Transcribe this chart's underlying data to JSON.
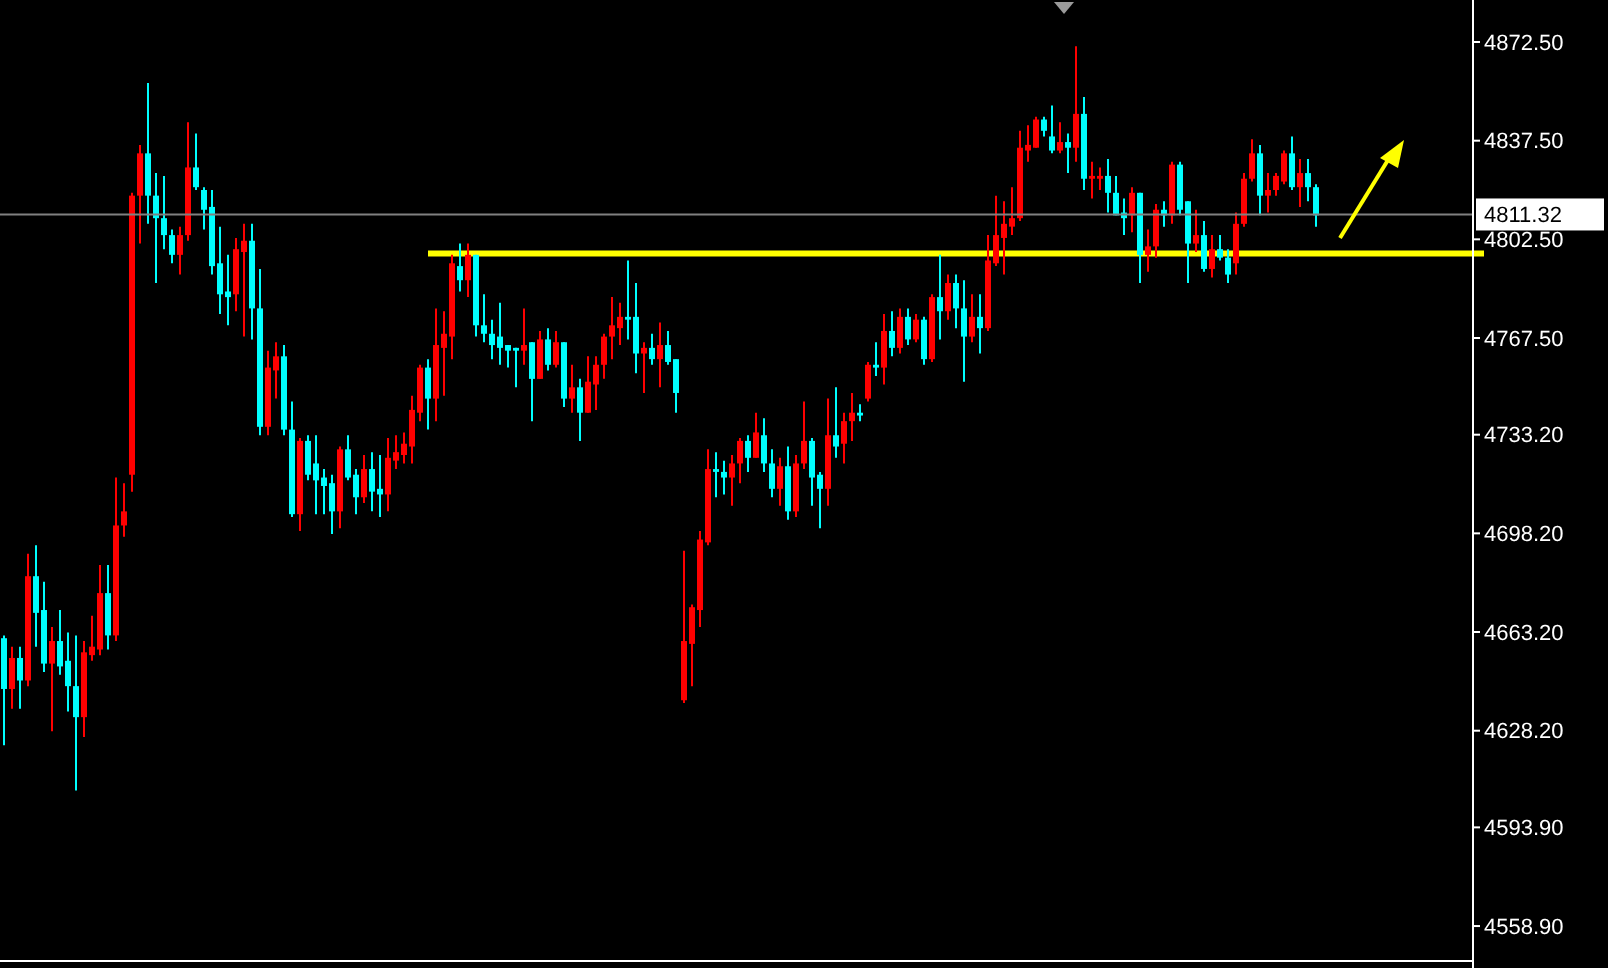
{
  "chart_data": {
    "type": "candlestick",
    "categories": [
      null,
      null,
      null,
      null,
      null,
      null,
      null,
      null,
      null,
      null,
      null,
      null,
      null,
      null,
      null,
      null,
      null,
      null,
      null,
      null,
      null,
      null,
      null,
      null,
      null,
      null,
      null,
      null,
      null,
      null,
      null,
      null,
      null,
      null,
      null,
      null,
      null,
      null,
      null,
      null,
      null,
      null,
      null,
      null,
      null,
      null,
      null,
      null,
      null,
      null,
      null,
      null,
      null,
      null,
      null,
      null,
      null,
      null,
      null,
      null,
      null,
      null,
      null,
      null,
      null,
      null,
      null,
      null,
      null,
      null,
      null,
      null,
      null,
      null,
      null,
      null,
      null,
      null,
      null,
      null,
      null,
      null,
      null,
      null,
      null,
      null,
      null,
      null,
      null,
      null,
      null,
      null,
      null,
      null,
      null,
      null,
      null,
      null,
      null,
      null,
      null,
      null,
      null,
      null,
      null,
      null,
      null,
      null,
      null,
      null,
      null,
      null,
      null,
      null,
      null,
      null,
      null,
      null,
      null,
      null,
      null,
      null,
      null,
      null,
      null,
      null,
      null,
      null,
      null,
      null,
      null,
      null,
      null,
      null,
      null,
      null,
      null,
      null,
      null,
      null,
      null,
      null,
      null,
      null,
      null,
      null,
      null,
      null,
      null,
      null,
      null,
      null,
      null,
      null,
      null,
      null,
      null,
      null,
      null,
      null,
      null,
      null,
      null,
      null,
      null,
      null,
      null,
      null,
      null,
      null,
      null,
      null,
      null,
      null,
      null,
      null,
      null,
      null,
      null,
      null,
      null,
      null,
      null,
      null
    ],
    "ohlc": [
      [
        4661,
        4662,
        4623,
        4643
      ],
      [
        4643,
        4658,
        4636,
        4654
      ],
      [
        4654,
        4658,
        4636,
        4646
      ],
      [
        4646,
        4691,
        4644,
        4683
      ],
      [
        4683,
        4694,
        4658,
        4670
      ],
      [
        4671,
        4681,
        4649,
        4652
      ],
      [
        4652,
        4665,
        4628,
        4660
      ],
      [
        4660,
        4671,
        4648,
        4651
      ],
      [
        4653,
        4663,
        4635,
        4644
      ],
      [
        4644,
        4662,
        4607,
        4633
      ],
      [
        4633,
        4660,
        4626,
        4656
      ],
      [
        4655,
        4669,
        4653,
        4658
      ],
      [
        4657,
        4687,
        4655,
        4677
      ],
      [
        4677,
        4687,
        4657,
        4662
      ],
      [
        4662,
        4718,
        4660,
        4701
      ],
      [
        4701,
        4716,
        4697,
        4706
      ],
      [
        4719,
        4819,
        4713,
        4818
      ],
      [
        4818,
        4836,
        4801,
        4833
      ],
      [
        4833,
        4858,
        4808,
        4818
      ],
      [
        4818,
        4826,
        4787,
        4810
      ],
      [
        4810,
        4825,
        4799,
        4804
      ],
      [
        4804,
        4806,
        4794,
        4797
      ],
      [
        4797,
        4807,
        4790,
        4804
      ],
      [
        4804,
        4844,
        4802,
        4828
      ],
      [
        4828,
        4840,
        4820,
        4821
      ],
      [
        4820,
        4821,
        4806,
        4813
      ],
      [
        4814,
        4820,
        4790,
        4793
      ],
      [
        4794,
        4807,
        4776,
        4783
      ],
      [
        4784,
        4797,
        4772,
        4782
      ],
      [
        4783,
        4803,
        4777,
        4799
      ],
      [
        4798,
        4808,
        4768,
        4802
      ],
      [
        4802,
        4808,
        4767,
        4778
      ],
      [
        4778,
        4792,
        4733,
        4736
      ],
      [
        4736,
        4763,
        4733,
        4757
      ],
      [
        4756,
        4766,
        4746,
        4761
      ],
      [
        4761,
        4765,
        4733,
        4735
      ],
      [
        4735,
        4745,
        4704,
        4705
      ],
      [
        4705,
        4732,
        4699,
        4731
      ],
      [
        4731,
        4733,
        4717,
        4719
      ],
      [
        4723,
        4733,
        4705,
        4717
      ],
      [
        4718,
        4721,
        4705,
        4715
      ],
      [
        4716,
        4719,
        4698,
        4706
      ],
      [
        4706,
        4729,
        4700,
        4728
      ],
      [
        4728,
        4733,
        4717,
        4718
      ],
      [
        4719,
        4721,
        4705,
        4711
      ],
      [
        4711,
        4726,
        4709,
        4721
      ],
      [
        4721,
        4727,
        4706,
        4713
      ],
      [
        4714,
        4726,
        4704,
        4712
      ],
      [
        4712,
        4732,
        4706,
        4725
      ],
      [
        4724,
        4733,
        4721,
        4727
      ],
      [
        4726,
        4734,
        4723,
        4730
      ],
      [
        4729,
        4747,
        4723,
        4742
      ],
      [
        4741,
        4758,
        4738,
        4757
      ],
      [
        4757,
        4760,
        4735,
        4746
      ],
      [
        4746,
        4778,
        4738,
        4765
      ],
      [
        4764,
        4777,
        4747,
        4769
      ],
      [
        4768,
        4797,
        4760,
        4794
      ],
      [
        4793,
        4801,
        4784,
        4788
      ],
      [
        4788,
        4801,
        4782,
        4797
      ],
      [
        4797,
        4797,
        4768,
        4772
      ],
      [
        4772,
        4783,
        4766,
        4769
      ],
      [
        4769,
        4774,
        4760,
        4765
      ],
      [
        4768,
        4780,
        4758,
        4764
      ],
      [
        4765,
        4765,
        4757,
        4763
      ],
      [
        4764,
        4764,
        4750,
        4763
      ],
      [
        4763,
        4778,
        4758,
        4765
      ],
      [
        4766,
        4766,
        4738,
        4753
      ],
      [
        4753,
        4770,
        4753,
        4767
      ],
      [
        4767,
        4771,
        4756,
        4758
      ],
      [
        4758,
        4770,
        4757,
        4766
      ],
      [
        4766,
        4766,
        4743,
        4746
      ],
      [
        4746,
        4758,
        4741,
        4750
      ],
      [
        4750,
        4753,
        4731,
        4741
      ],
      [
        4741,
        4761,
        4741,
        4752
      ],
      [
        4751,
        4761,
        4742,
        4758
      ],
      [
        4758,
        4769,
        4753,
        4768
      ],
      [
        4768,
        4782,
        4760,
        4772
      ],
      [
        4771,
        4780,
        4765,
        4775
      ],
      [
        4775,
        4795,
        4767,
        4774
      ],
      [
        4775,
        4787,
        4755,
        4762
      ],
      [
        4762,
        4766,
        4748,
        4764
      ],
      [
        4764,
        4769,
        4758,
        4760
      ],
      [
        4760,
        4773,
        4750,
        4765
      ],
      [
        4765,
        4770,
        4758,
        4759
      ],
      [
        4760,
        4760,
        4741,
        4748
      ],
      [
        4639,
        4692,
        4638,
        4660
      ],
      [
        4659,
        4673,
        4644,
        4672
      ],
      [
        4671,
        4699,
        4665,
        4696
      ],
      [
        4695,
        4728,
        4694,
        4721
      ],
      [
        4721,
        4727,
        4711,
        4720
      ],
      [
        4720,
        4724,
        4712,
        4718
      ],
      [
        4718,
        4726,
        4708,
        4723
      ],
      [
        4723,
        4732,
        4716,
        4731
      ],
      [
        4731,
        4733,
        4720,
        4725
      ],
      [
        4725,
        4741,
        4725,
        4734
      ],
      [
        4733,
        4739,
        4720,
        4723
      ],
      [
        4723,
        4728,
        4711,
        4714
      ],
      [
        4714,
        4725,
        4708,
        4722
      ],
      [
        4722,
        4729,
        4703,
        4706
      ],
      [
        4706,
        4726,
        4704,
        4723
      ],
      [
        4723,
        4745,
        4721,
        4731
      ],
      [
        4731,
        4732,
        4708,
        4718
      ],
      [
        4719,
        4720,
        4700,
        4714
      ],
      [
        4714,
        4746,
        4708,
        4733
      ],
      [
        4733,
        4750,
        4725,
        4729
      ],
      [
        4730,
        4741,
        4723,
        4738
      ],
      [
        4738,
        4748,
        4731,
        4741
      ],
      [
        4741,
        4744,
        4738,
        4740
      ],
      [
        4746,
        4759,
        4745,
        4758
      ],
      [
        4758,
        4766,
        4754,
        4757
      ],
      [
        4757,
        4776,
        4751,
        4770
      ],
      [
        4770,
        4777,
        4761,
        4764
      ],
      [
        4764,
        4778,
        4762,
        4775
      ],
      [
        4775,
        4778,
        4765,
        4767
      ],
      [
        4767,
        4776,
        4766,
        4774
      ],
      [
        4774,
        4775,
        4758,
        4760
      ],
      [
        4760,
        4783,
        4759,
        4782
      ],
      [
        4782,
        4797,
        4767,
        4777
      ],
      [
        4777,
        4790,
        4774,
        4787
      ],
      [
        4787,
        4790,
        4771,
        4778
      ],
      [
        4778,
        4788,
        4752,
        4768
      ],
      [
        4768,
        4783,
        4766,
        4775
      ],
      [
        4775,
        4783,
        4762,
        4771
      ],
      [
        4771,
        4804,
        4770,
        4795
      ],
      [
        4794,
        4818,
        4793,
        4804
      ],
      [
        4803,
        4816,
        4790,
        4808
      ],
      [
        4807,
        4821,
        4804,
        4810
      ],
      [
        4810,
        4841,
        4809,
        4835
      ],
      [
        4834,
        4843,
        4830,
        4836
      ],
      [
        4835,
        4846,
        4835,
        4845
      ],
      [
        4845,
        4846,
        4839,
        4841
      ],
      [
        4839,
        4850,
        4833,
        4834
      ],
      [
        4834,
        4844,
        4833,
        4837
      ],
      [
        4837,
        4840,
        4826,
        4835
      ],
      [
        4835,
        4871,
        4830,
        4847
      ],
      [
        4847,
        4853,
        4820,
        4824
      ],
      [
        4824,
        4830,
        4817,
        4825
      ],
      [
        4824,
        4828,
        4820,
        4825
      ],
      [
        4825,
        4831,
        4812,
        4819
      ],
      [
        4819,
        4825,
        4811,
        4811
      ],
      [
        4812,
        4817,
        4804,
        4810
      ],
      [
        4811,
        4821,
        4805,
        4819
      ],
      [
        4819,
        4819,
        4787,
        4797
      ],
      [
        4797,
        4806,
        4791,
        4800
      ],
      [
        4800,
        4815,
        4796,
        4813
      ],
      [
        4813,
        4816,
        4807,
        4811
      ],
      [
        4811,
        4830,
        4808,
        4829
      ],
      [
        4829,
        4830,
        4811,
        4813
      ],
      [
        4816,
        4816,
        4787,
        4801
      ],
      [
        4801,
        4813,
        4798,
        4804
      ],
      [
        4804,
        4809,
        4791,
        4792
      ],
      [
        4792,
        4804,
        4789,
        4799
      ],
      [
        4799,
        4804,
        4795,
        4796
      ],
      [
        4796,
        4799,
        4787,
        4790
      ],
      [
        4794,
        4812,
        4790,
        4808
      ],
      [
        4808,
        4826,
        4807,
        4824
      ],
      [
        4824,
        4838,
        4823,
        4833
      ],
      [
        4833,
        4836,
        4811,
        4818
      ],
      [
        4818,
        4826,
        4812,
        4820
      ],
      [
        4820,
        4826,
        4818,
        4825
      ],
      [
        4823,
        4834,
        4822,
        4833
      ],
      [
        4833,
        4839,
        4820,
        4821
      ],
      [
        4821,
        4831,
        4814,
        4826
      ],
      [
        4826,
        4831,
        4816,
        4821
      ],
      [
        4821,
        4822,
        4807,
        4811
      ],
      null,
      null,
      null,
      null,
      null,
      null,
      null,
      null,
      null,
      null,
      null,
      null,
      null,
      null,
      null,
      null,
      null,
      null,
      null
    ],
    "colors": [
      "#00ffff",
      "#ff0000",
      "#00ffff",
      "#ff0000",
      "#00ffff",
      "#00ffff",
      "#ff0000",
      "#00ffff",
      "#00ffff",
      "#00ffff",
      "#ff0000",
      "#ff0000",
      "#ff0000",
      "#00ffff",
      "#ff0000",
      "#ff0000",
      "#ff0000",
      "#ff0000",
      "#00ffff",
      "#00ffff",
      "#00ffff",
      "#00ffff",
      "#ff0000",
      "#ff0000",
      "#00ffff",
      "#00ffff",
      "#00ffff",
      "#00ffff",
      "#00ffff",
      "#ff0000",
      "#ff0000",
      "#00ffff",
      "#00ffff",
      "#ff0000",
      "#ff0000",
      "#00ffff",
      "#00ffff",
      "#ff0000",
      "#00ffff",
      "#00ffff",
      "#00ffff",
      "#00ffff",
      "#ff0000",
      "#00ffff",
      "#00ffff",
      "#ff0000",
      "#00ffff",
      "#00ffff",
      "#ff0000",
      "#ff0000",
      "#ff0000",
      "#ff0000",
      "#ff0000",
      "#00ffff",
      "#ff0000",
      "#ff0000",
      "#ff0000",
      "#00ffff",
      "#ff0000",
      "#00ffff",
      "#00ffff",
      "#00ffff",
      "#00ffff",
      "#00ffff",
      "#00ffff",
      "#ff0000",
      "#00ffff",
      "#ff0000",
      "#00ffff",
      "#ff0000",
      "#00ffff",
      "#ff0000",
      "#00ffff",
      "#ff0000",
      "#ff0000",
      "#ff0000",
      "#ff0000",
      "#ff0000",
      "#00ffff",
      "#00ffff",
      "#ff0000",
      "#00ffff",
      "#ff0000",
      "#00ffff",
      "#00ffff",
      "#ff0000",
      "#ff0000",
      "#ff0000",
      "#ff0000",
      "#00ffff",
      "#00ffff",
      "#ff0000",
      "#ff0000",
      "#00ffff",
      "#ff0000",
      "#00ffff",
      "#00ffff",
      "#ff0000",
      "#00ffff",
      "#ff0000",
      "#ff0000",
      "#00ffff",
      "#00ffff",
      "#ff0000",
      "#00ffff",
      "#ff0000",
      "#ff0000",
      "#00ffff",
      "#ff0000",
      "#00ffff",
      "#ff0000",
      "#00ffff",
      "#ff0000",
      "#00ffff",
      "#ff0000",
      "#00ffff",
      "#ff0000",
      "#00ffff",
      "#ff0000",
      "#00ffff",
      "#00ffff",
      "#ff0000",
      "#00ffff",
      "#ff0000",
      "#ff0000",
      "#ff0000",
      "#ff0000",
      "#ff0000",
      "#ff0000",
      "#ff0000",
      "#00ffff",
      "#00ffff",
      "#ff0000",
      "#00ffff",
      "#ff0000",
      "#00ffff",
      "#ff0000",
      "#ff0000",
      "#00ffff",
      "#00ffff",
      "#00ffff",
      "#ff0000",
      "#00ffff",
      "#ff0000",
      "#ff0000",
      "#00ffff",
      "#ff0000",
      "#00ffff",
      "#00ffff",
      "#ff0000",
      "#00ffff",
      "#ff0000",
      "#00ffff",
      "#00ffff",
      "#ff0000",
      "#ff0000",
      "#ff0000",
      "#00ffff",
      "#ff0000",
      "#ff0000",
      "#ff0000",
      "#00ffff",
      "#ff0000",
      "#00ffff",
      "#00ffff",
      null,
      null,
      null,
      null,
      null,
      null,
      null,
      null,
      null,
      null,
      null,
      null,
      null,
      null,
      null,
      null,
      null,
      null,
      null
    ],
    "ylim": [
      4546.5,
      4887.4
    ],
    "yticks": [
      {
        "value": 4872.5,
        "label": "4872.50"
      },
      {
        "value": 4837.5,
        "label": "4837.50"
      },
      {
        "value": 4802.5,
        "label": "4802.50"
      },
      {
        "value": 4767.5,
        "label": "4767.50"
      },
      {
        "value": 4733.2,
        "label": "4733.20"
      },
      {
        "value": 4698.2,
        "label": "4698.20"
      },
      {
        "value": 4663.2,
        "label": "4663.20"
      },
      {
        "value": 4628.2,
        "label": "4628.20"
      },
      {
        "value": 4593.9,
        "label": "4593.90"
      },
      {
        "value": 4558.9,
        "label": "4558.90"
      }
    ],
    "ref_lines": [
      {
        "axis": "y",
        "value": 4811.32,
        "label": "4811.32",
        "color": "#808080"
      },
      {
        "axis": "y",
        "value": 4797.5,
        "color": "#ffff00"
      }
    ],
    "tick_labels": "y",
    "grid": false
  }
}
